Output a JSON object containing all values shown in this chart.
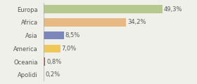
{
  "categories": [
    "Europa",
    "Africa",
    "Asia",
    "America",
    "Oceania",
    "Apolidi"
  ],
  "values": [
    49.3,
    34.2,
    8.5,
    7.0,
    0.8,
    0.2
  ],
  "labels": [
    "49,3%",
    "34,2%",
    "8,5%",
    "7,0%",
    "0,8%",
    "0,2%"
  ],
  "bar_colors": [
    "#b5c98e",
    "#e8b882",
    "#7b86bb",
    "#f0c85a",
    "#d94040",
    "#cccccc"
  ],
  "background_color": "#f0f0ea",
  "text_color": "#555555",
  "label_fontsize": 6.0,
  "ylabel_fontsize": 6.0,
  "xlim": [
    0,
    62
  ],
  "bar_height": 0.62
}
